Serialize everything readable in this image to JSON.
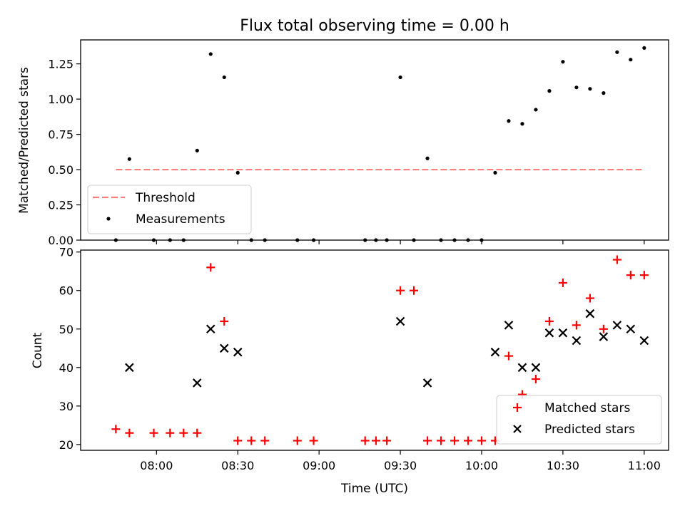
{
  "chart_data": [
    {
      "type": "scatter",
      "title": "Flux total observing time = 0.00 h",
      "xlabel": "",
      "ylabel": "Matched/Predicted stars",
      "ylim": [
        0,
        1.42
      ],
      "xlim": [
        "07:32",
        "11:09"
      ],
      "yticks": [
        "0.00",
        "0.25",
        "0.50",
        "0.75",
        "1.00",
        "1.25"
      ],
      "legend": {
        "placement": "lower-left",
        "entries": [
          "Threshold",
          "Measurements"
        ]
      },
      "threshold": {
        "name": "Threshold",
        "value": 0.5,
        "x_start": "07:45",
        "x_end": "11:00",
        "color": "#ff7f7f",
        "style": "dashed"
      },
      "series": [
        {
          "name": "Measurements",
          "color": "#000000",
          "marker": "dot",
          "points": [
            [
              "07:45",
              0.0
            ],
            [
              "07:50",
              0.575
            ],
            [
              "07:59",
              0.0
            ],
            [
              "08:05",
              0.0
            ],
            [
              "08:10",
              0.0
            ],
            [
              "08:15",
              0.635
            ],
            [
              "08:20",
              1.32
            ],
            [
              "08:25",
              1.155
            ],
            [
              "08:30",
              0.478
            ],
            [
              "08:35",
              0.0
            ],
            [
              "08:40",
              0.0
            ],
            [
              "08:52",
              0.0
            ],
            [
              "08:58",
              0.0
            ],
            [
              "09:17",
              0.0
            ],
            [
              "09:21",
              0.0
            ],
            [
              "09:25",
              0.0
            ],
            [
              "09:30",
              1.155
            ],
            [
              "09:35",
              0.0
            ],
            [
              "09:40",
              0.58
            ],
            [
              "09:45",
              0.0
            ],
            [
              "09:50",
              0.0
            ],
            [
              "09:55",
              0.0
            ],
            [
              "10:00",
              0.0
            ],
            [
              "10:05",
              0.478
            ],
            [
              "10:10",
              0.845
            ],
            [
              "10:15",
              0.825
            ],
            [
              "10:20",
              0.925
            ],
            [
              "10:25",
              1.058
            ],
            [
              "10:30",
              1.265
            ],
            [
              "10:35",
              1.083
            ],
            [
              "10:40",
              1.073
            ],
            [
              "10:45",
              1.043
            ],
            [
              "10:50",
              1.333
            ],
            [
              "10:55",
              1.28
            ],
            [
              "11:00",
              1.363
            ]
          ]
        }
      ]
    },
    {
      "type": "scatter",
      "title": "",
      "xlabel": "Time (UTC)",
      "ylabel": "Count",
      "ylim": [
        18.5,
        70.5
      ],
      "xlim": [
        "07:32",
        "11:09"
      ],
      "yticks": [
        "20",
        "30",
        "40",
        "50",
        "60",
        "70"
      ],
      "xticks": [
        "08:00",
        "08:30",
        "09:00",
        "09:30",
        "10:00",
        "10:30",
        "11:00"
      ],
      "legend": {
        "placement": "lower-right",
        "entries": [
          "Matched stars",
          "Predicted stars"
        ]
      },
      "series": [
        {
          "name": "Matched stars",
          "color": "#ff0000",
          "marker": "plus",
          "points": [
            [
              "07:45",
              24
            ],
            [
              "07:50",
              23
            ],
            [
              "07:59",
              23
            ],
            [
              "08:05",
              23
            ],
            [
              "08:10",
              23
            ],
            [
              "08:15",
              23
            ],
            [
              "08:20",
              66
            ],
            [
              "08:25",
              52
            ],
            [
              "08:30",
              21
            ],
            [
              "08:35",
              21
            ],
            [
              "08:40",
              21
            ],
            [
              "08:52",
              21
            ],
            [
              "08:58",
              21
            ],
            [
              "09:17",
              21
            ],
            [
              "09:21",
              21
            ],
            [
              "09:25",
              21
            ],
            [
              "09:30",
              60
            ],
            [
              "09:35",
              60
            ],
            [
              "09:40",
              21
            ],
            [
              "09:45",
              21
            ],
            [
              "09:50",
              21
            ],
            [
              "09:55",
              21
            ],
            [
              "10:00",
              21
            ],
            [
              "10:05",
              21
            ],
            [
              "10:10",
              43
            ],
            [
              "10:15",
              33
            ],
            [
              "10:20",
              37
            ],
            [
              "10:25",
              52
            ],
            [
              "10:30",
              62
            ],
            [
              "10:35",
              51
            ],
            [
              "10:40",
              58
            ],
            [
              "10:45",
              50
            ],
            [
              "10:50",
              68
            ],
            [
              "10:55",
              64
            ],
            [
              "11:00",
              64
            ]
          ]
        },
        {
          "name": "Predicted stars",
          "color": "#000000",
          "marker": "x",
          "points": [
            [
              "07:50",
              40
            ],
            [
              "08:15",
              36
            ],
            [
              "08:20",
              50
            ],
            [
              "08:25",
              45
            ],
            [
              "08:30",
              44
            ],
            [
              "09:30",
              52
            ],
            [
              "09:40",
              36
            ],
            [
              "10:05",
              44
            ],
            [
              "10:10",
              51
            ],
            [
              "10:15",
              40
            ],
            [
              "10:20",
              40
            ],
            [
              "10:25",
              49
            ],
            [
              "10:30",
              49
            ],
            [
              "10:35",
              47
            ],
            [
              "10:40",
              54
            ],
            [
              "10:45",
              48
            ],
            [
              "10:50",
              51
            ],
            [
              "10:55",
              50
            ],
            [
              "11:00",
              47
            ]
          ]
        }
      ]
    }
  ]
}
